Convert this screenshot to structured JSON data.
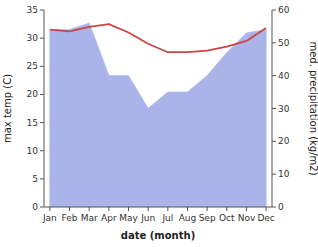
{
  "chart_data": {
    "type": "line",
    "categories": [
      "Jan",
      "Feb",
      "Mar",
      "Apr",
      "May",
      "Jun",
      "Jul",
      "Aug",
      "Sep",
      "Oct",
      "Nov",
      "Dec"
    ],
    "series": [
      {
        "type": "area",
        "axis": "y2",
        "color": "#aab4e8",
        "values": [
          54,
          54,
          56,
          40,
          40,
          30,
          35,
          35,
          40,
          47,
          53,
          54
        ]
      },
      {
        "type": "line",
        "color": "#cc4444",
        "values": [
          31.5,
          31.2,
          32.0,
          32.5,
          31.0,
          29.0,
          27.5,
          27.5,
          27.8,
          28.5,
          29.5,
          31.8
        ]
      }
    ],
    "xlabel": "date (month)",
    "ylabel": "max temp (C)",
    "y2label": "med. precipitation (kg/m2)",
    "ylim": [
      0,
      35
    ],
    "yticks": [
      0,
      5,
      10,
      15,
      20,
      25,
      30,
      35
    ],
    "y2lim": [
      0,
      60
    ],
    "y2ticks": [
      0,
      10,
      20,
      30,
      40,
      50,
      60
    ],
    "grid": false
  }
}
